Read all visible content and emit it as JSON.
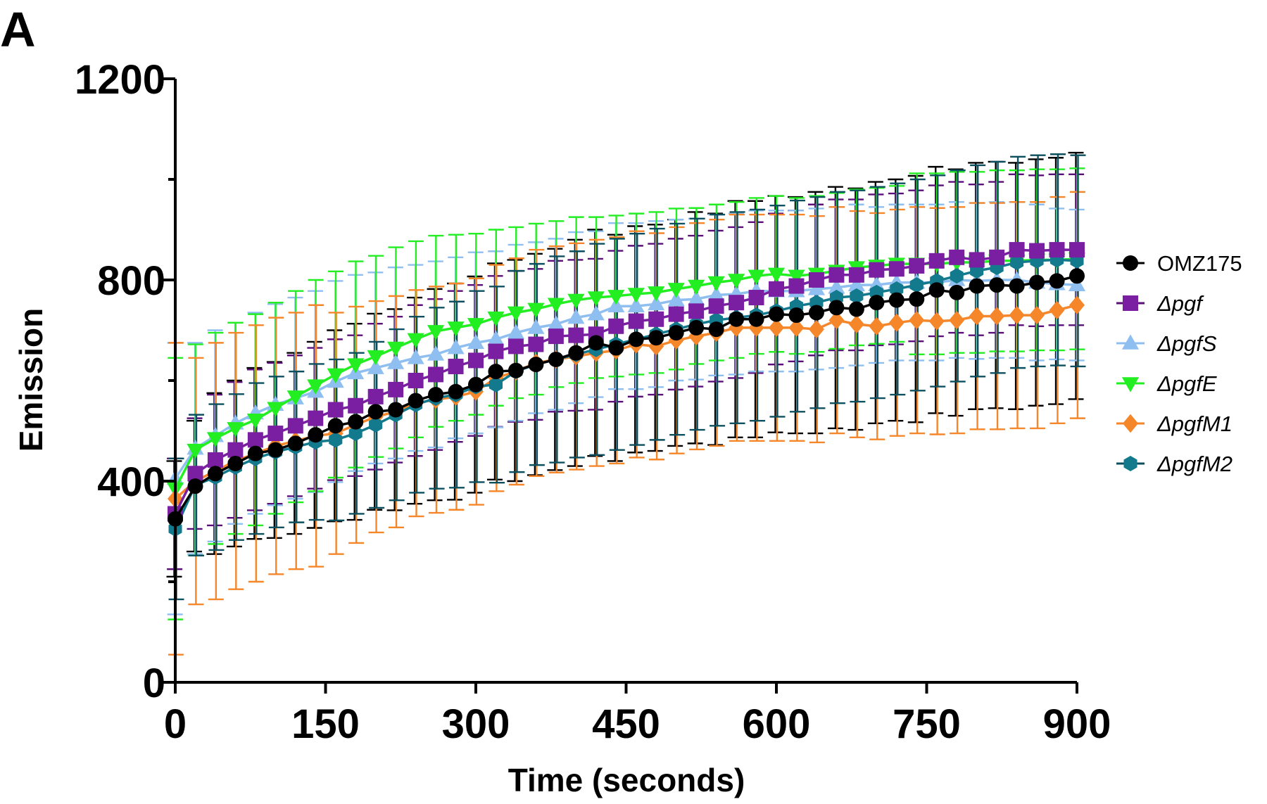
{
  "chart_data": {
    "type": "line",
    "panel_label": "A",
    "xlabel": "Time (seconds)",
    "ylabel": "Emission",
    "xlim": [
      0,
      900
    ],
    "ylim": [
      0,
      1200
    ],
    "x_ticks": [
      "0",
      "150",
      "300",
      "450",
      "600",
      "750",
      "900"
    ],
    "y_ticks": [
      "0",
      "400",
      "800",
      "1200"
    ],
    "legend_position": "right",
    "error_bars": true,
    "grid": false,
    "x": [
      0,
      20,
      40,
      60,
      80,
      100,
      120,
      140,
      160,
      180,
      200,
      220,
      240,
      260,
      280,
      300,
      320,
      340,
      360,
      380,
      400,
      420,
      440,
      460,
      480,
      500,
      520,
      540,
      560,
      580,
      600,
      620,
      640,
      660,
      680,
      700,
      720,
      740,
      760,
      780,
      800,
      820,
      840,
      860,
      880,
      900
    ],
    "series": [
      {
        "name": "OMZ175",
        "italic": false,
        "marker": "circle",
        "color": "#000000",
        "error_color": "#000000",
        "values": [
          325,
          390,
          415,
          435,
          455,
          462,
          475,
          492,
          510,
          518,
          538,
          542,
          560,
          572,
          578,
          592,
          618,
          620,
          632,
          642,
          655,
          675,
          665,
          682,
          685,
          695,
          705,
          702,
          722,
          722,
          732,
          730,
          735,
          745,
          742,
          755,
          760,
          762,
          780,
          775,
          788,
          790,
          788,
          795,
          798,
          808
        ],
        "errors": [
          115,
          130,
          160,
          165,
          170,
          175,
          180,
          185,
          190,
          195,
          195,
          200,
          205,
          210,
          215,
          215,
          215,
          220,
          220,
          220,
          225,
          225,
          225,
          225,
          225,
          225,
          230,
          230,
          235,
          235,
          235,
          235,
          240,
          240,
          240,
          240,
          240,
          245,
          245,
          245,
          245,
          245,
          245,
          245,
          245,
          245
        ]
      },
      {
        "name": "Δpgf",
        "italic": true,
        "marker": "square",
        "color": "#7b1fa2",
        "error_color": "#5a0f78",
        "values": [
          335,
          415,
          442,
          462,
          482,
          495,
          510,
          525,
          542,
          550,
          568,
          582,
          600,
          612,
          628,
          640,
          658,
          668,
          672,
          688,
          690,
          692,
          708,
          718,
          722,
          732,
          738,
          748,
          755,
          765,
          782,
          788,
          800,
          810,
          810,
          820,
          822,
          828,
          838,
          845,
          840,
          845,
          860,
          858,
          860,
          860
        ],
        "errors": [
          110,
          110,
          130,
          135,
          140,
          140,
          140,
          140,
          140,
          140,
          145,
          145,
          150,
          150,
          150,
          150,
          150,
          150,
          150,
          150,
          150,
          150,
          150,
          150,
          150,
          150,
          150,
          150,
          150,
          150,
          150,
          150,
          150,
          150,
          150,
          150,
          150,
          150,
          150,
          150,
          150,
          150,
          150,
          150,
          150,
          150
        ]
      },
      {
        "name": "ΔpgfS",
        "italic": true,
        "marker": "triangle-up",
        "color": "#8fbff0",
        "error_color": "#8fbff0",
        "values": [
          405,
          465,
          490,
          515,
          535,
          552,
          565,
          578,
          598,
          615,
          625,
          635,
          645,
          652,
          665,
          675,
          682,
          695,
          705,
          712,
          725,
          732,
          748,
          748,
          752,
          760,
          762,
          770,
          772,
          778,
          778,
          778,
          782,
          785,
          790,
          790,
          795,
          795,
          795,
          800,
          798,
          800,
          800,
          795,
          792,
          790
        ],
        "errors": [
          270,
          210,
          210,
          200,
          200,
          200,
          200,
          200,
          200,
          195,
          190,
          190,
          185,
          185,
          180,
          180,
          175,
          175,
          170,
          170,
          170,
          165,
          165,
          165,
          165,
          160,
          160,
          160,
          160,
          160,
          160,
          160,
          160,
          160,
          160,
          155,
          155,
          155,
          155,
          155,
          155,
          155,
          155,
          155,
          150,
          150
        ]
      },
      {
        "name": "ΔpgfE",
        "italic": true,
        "marker": "triangle-down",
        "color": "#22ee22",
        "error_color": "#22ee22",
        "values": [
          385,
          462,
          485,
          505,
          522,
          545,
          568,
          590,
          612,
          632,
          648,
          665,
          682,
          698,
          705,
          712,
          725,
          735,
          742,
          752,
          760,
          765,
          768,
          772,
          775,
          782,
          788,
          795,
          800,
          808,
          812,
          808,
          812,
          818,
          825,
          828,
          832,
          832,
          832,
          835,
          835,
          838,
          838,
          840,
          840,
          842
        ],
        "errors": [
          260,
          210,
          210,
          210,
          210,
          210,
          210,
          210,
          205,
          205,
          200,
          200,
          195,
          190,
          185,
          180,
          175,
          170,
          170,
          165,
          165,
          160,
          160,
          160,
          160,
          160,
          155,
          155,
          155,
          155,
          155,
          155,
          155,
          155,
          155,
          155,
          155,
          180,
          180,
          180,
          180,
          180,
          180,
          180,
          180,
          180
        ]
      },
      {
        "name": "ΔpgfM1",
        "italic": true,
        "marker": "diamond",
        "color": "#f5862a",
        "error_color": "#f5862a",
        "values": [
          365,
          400,
          420,
          440,
          455,
          470,
          480,
          490,
          495,
          512,
          528,
          538,
          555,
          562,
          568,
          578,
          605,
          618,
          635,
          642,
          648,
          655,
          660,
          672,
          668,
          680,
          688,
          695,
          705,
          705,
          705,
          705,
          702,
          720,
          712,
          708,
          715,
          720,
          718,
          720,
          728,
          728,
          730,
          730,
          740,
          750
        ],
        "errors": [
          310,
          245,
          255,
          255,
          255,
          255,
          255,
          260,
          240,
          235,
          230,
          230,
          225,
          225,
          225,
          225,
          225,
          225,
          225,
          225,
          225,
          225,
          225,
          225,
          225,
          225,
          225,
          225,
          225,
          225,
          225,
          225,
          225,
          225,
          225,
          225,
          225,
          225,
          225,
          225,
          225,
          225,
          225,
          225,
          225,
          225
        ]
      },
      {
        "name": "ΔpgfM2",
        "italic": true,
        "marker": "hexagon",
        "color": "#137a8e",
        "error_color": "#0c4f5e",
        "values": [
          305,
          392,
          408,
          428,
          445,
          458,
          468,
          478,
          482,
          495,
          512,
          532,
          552,
          565,
          572,
          588,
          592,
          618,
          632,
          642,
          652,
          662,
          672,
          682,
          692,
          702,
          712,
          720,
          725,
          730,
          738,
          748,
          755,
          765,
          768,
          775,
          782,
          790,
          798,
          808,
          818,
          825,
          835,
          838,
          840,
          838
        ],
        "errors": [
          140,
          140,
          145,
          145,
          150,
          150,
          150,
          155,
          160,
          160,
          165,
          170,
          175,
          180,
          185,
          190,
          195,
          200,
          200,
          205,
          205,
          210,
          210,
          210,
          210,
          210,
          210,
          210,
          210,
          210,
          210,
          210,
          210,
          210,
          210,
          210,
          210,
          210,
          210,
          210,
          210,
          210,
          210,
          210,
          210,
          210
        ]
      }
    ]
  }
}
